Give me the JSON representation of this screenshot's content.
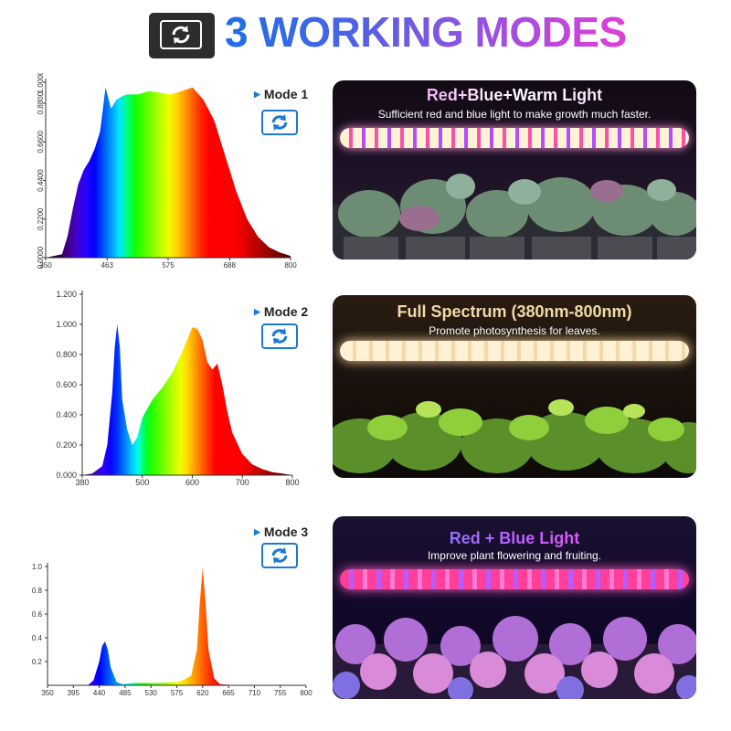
{
  "header": {
    "title": "3 WORKING MODES",
    "icon": "refresh-arrows-icon"
  },
  "modes": [
    {
      "label": "Mode 1",
      "badge_icon": "refresh-arrows-icon",
      "panel": {
        "title": "Red+Blue+Warm Light",
        "subtitle": "Sufficient red and blue light to make growth much faster."
      }
    },
    {
      "label": "Mode 2",
      "badge_icon": "refresh-arrows-icon",
      "panel": {
        "title": "Full Spectrum (380nm-800nm)",
        "subtitle": "Promote photosynthesis for leaves."
      }
    },
    {
      "label": "Mode 3",
      "badge_icon": "refresh-arrows-icon",
      "panel": {
        "title": "Red + Blue Light",
        "subtitle": "Improve plant flowering and fruiting."
      }
    }
  ],
  "colors": {
    "accent_blue": "#1b78d8",
    "title_gradient_start": "#1d6fe8",
    "title_gradient_end": "#e03fd8"
  },
  "chart_data": [
    {
      "type": "area",
      "xlabel": "",
      "ylabel": "",
      "xlim": [
        350,
        800
      ],
      "ylim": [
        0,
        1.0
      ],
      "x_ticks": [
        "350",
        "463",
        "575",
        "688",
        "800"
      ],
      "y_ticks": [
        "0.0000",
        "0.2200",
        "0.4400",
        "0.6600",
        "0.8800",
        "1.0000"
      ],
      "x": [
        350,
        380,
        390,
        400,
        410,
        420,
        430,
        440,
        450,
        460,
        470,
        480,
        490,
        500,
        520,
        540,
        560,
        580,
        600,
        620,
        640,
        660,
        680,
        700,
        720,
        740,
        760,
        780,
        800
      ],
      "values": [
        0,
        0.02,
        0.12,
        0.28,
        0.42,
        0.5,
        0.55,
        0.62,
        0.72,
        0.97,
        0.85,
        0.9,
        0.92,
        0.93,
        0.93,
        0.95,
        0.94,
        0.93,
        0.95,
        0.97,
        0.9,
        0.78,
        0.58,
        0.38,
        0.22,
        0.12,
        0.06,
        0.03,
        0.01
      ]
    },
    {
      "type": "area",
      "xlabel": "",
      "ylabel": "",
      "xlim": [
        380,
        800
      ],
      "ylim": [
        0,
        1.2
      ],
      "x_ticks": [
        "380",
        "500",
        "600",
        "700",
        "800"
      ],
      "y_ticks": [
        "0.000",
        "0.200",
        "0.400",
        "0.600",
        "0.800",
        "1.000",
        "1.200"
      ],
      "x": [
        380,
        400,
        420,
        430,
        440,
        445,
        450,
        455,
        460,
        470,
        480,
        490,
        500,
        520,
        540,
        560,
        580,
        600,
        610,
        620,
        630,
        640,
        650,
        660,
        670,
        680,
        700,
        720,
        740,
        760,
        780,
        800
      ],
      "values": [
        0,
        0.01,
        0.06,
        0.2,
        0.55,
        0.85,
        1.0,
        0.85,
        0.5,
        0.3,
        0.2,
        0.25,
        0.38,
        0.5,
        0.58,
        0.68,
        0.82,
        0.98,
        0.97,
        0.9,
        0.75,
        0.7,
        0.74,
        0.6,
        0.42,
        0.28,
        0.14,
        0.07,
        0.04,
        0.02,
        0.01,
        0
      ]
    },
    {
      "type": "area",
      "xlabel": "",
      "ylabel": "",
      "xlim": [
        350,
        800
      ],
      "ylim": [
        0,
        1.0
      ],
      "x_ticks": [
        "350",
        "395",
        "440",
        "485",
        "530",
        "575",
        "620",
        "665",
        "710",
        "755",
        "800"
      ],
      "y_ticks": [
        "0.2",
        "0.4",
        "0.6",
        "0.8",
        "1.0"
      ],
      "x": [
        350,
        420,
        430,
        440,
        445,
        450,
        455,
        460,
        470,
        480,
        500,
        540,
        580,
        600,
        610,
        615,
        620,
        625,
        630,
        640,
        650,
        680,
        720,
        800
      ],
      "values": [
        0,
        0.0,
        0.04,
        0.2,
        0.33,
        0.37,
        0.3,
        0.15,
        0.03,
        0.01,
        0.02,
        0.02,
        0.03,
        0.08,
        0.3,
        0.7,
        0.99,
        0.7,
        0.3,
        0.06,
        0.01,
        0,
        0,
        0
      ]
    }
  ]
}
